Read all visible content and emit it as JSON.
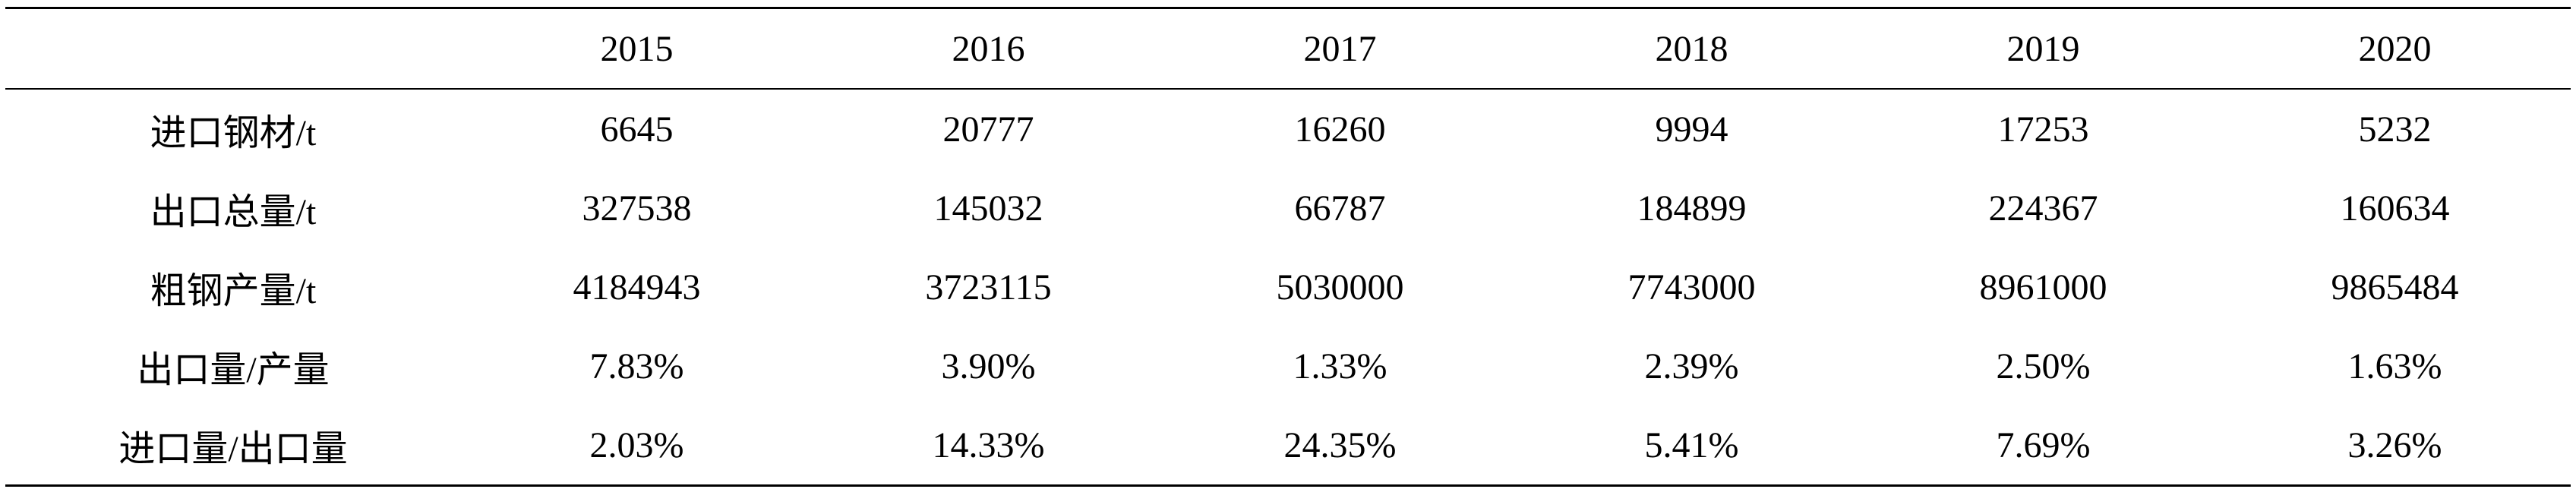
{
  "table": {
    "header": [
      "2015",
      "2016",
      "2017",
      "2018",
      "2019",
      "2020"
    ],
    "rows": [
      [
        "进口钢材/t",
        "6645",
        "20777",
        "16260",
        "9994",
        "17253",
        "5232"
      ],
      [
        "出口总量/t",
        "327538",
        "145032",
        "66787",
        "184899",
        "224367",
        "160634"
      ],
      [
        "粗钢产量/t",
        "4184943",
        "3723115",
        "5030000",
        "7743000",
        "8961000",
        "9865484"
      ],
      [
        "出口量/产量",
        "7.83%",
        "3.90%",
        "1.33%",
        "2.39%",
        "2.50%",
        "1.63%"
      ],
      [
        "进口量/出口量",
        "2.03%",
        "14.33%",
        "24.35%",
        "5.41%",
        "7.69%",
        "3.26%"
      ]
    ]
  }
}
